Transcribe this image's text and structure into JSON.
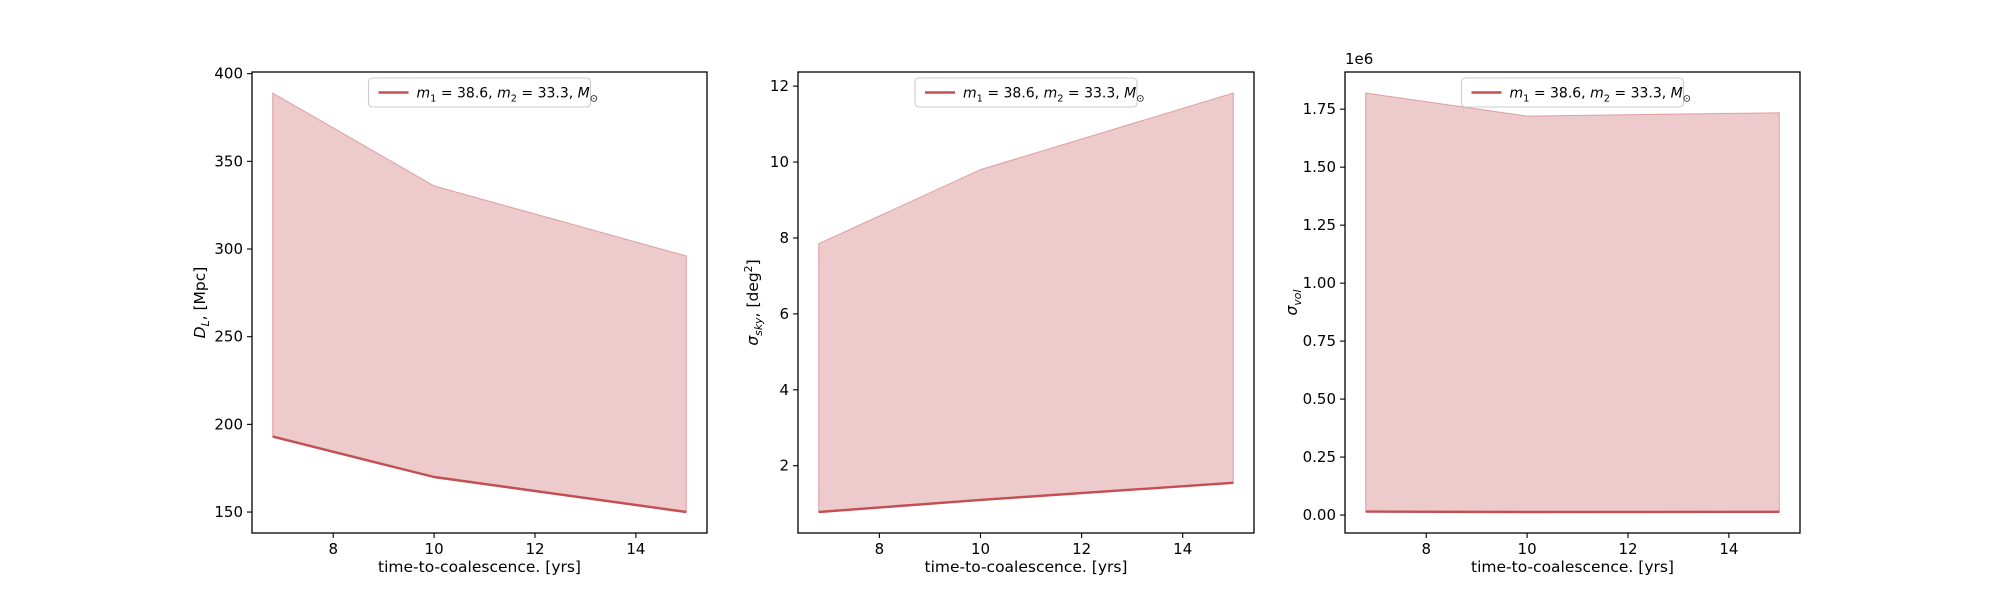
{
  "figure": {
    "background": "#ffffff"
  },
  "style": {
    "line_color": "#c44e52",
    "fill_color": "rgba(196,78,82,0.30)",
    "fill_edge_color": "rgba(196,78,82,0.45)",
    "spine_color": "#000000",
    "text_color": "#000000",
    "legend_border_color": "#cccccc",
    "legend_bg": "#ffffff"
  },
  "legend": {
    "label": "m₁ = 38.6, m₂ = 33.3, M⊙",
    "label_parts": [
      {
        "t": "m",
        "it": true
      },
      {
        "t": "1",
        "sub": true
      },
      {
        "t": " = 38.6, "
      },
      {
        "t": "m",
        "it": true
      },
      {
        "t": "2",
        "sub": true
      },
      {
        "t": " = 33.3, "
      },
      {
        "t": "M",
        "it": true
      },
      {
        "t": "⊙",
        "sub": true
      }
    ]
  },
  "chart_data": [
    {
      "type": "area",
      "panel": "luminosity-distance",
      "title": "",
      "xlabel": "time-to-coalescence. [yrs]",
      "ylabel": "D_L, [Mpc]",
      "ylabel_parts": [
        {
          "t": "D",
          "it": true
        },
        {
          "t": "L",
          "sub": true,
          "it": true
        },
        {
          "t": ", [Mpc]"
        }
      ],
      "legend_label": "m₁ = 38.6, m₂ = 33.3, M⊙",
      "x": [
        6.8,
        10,
        15
      ],
      "line": [
        193,
        170,
        150
      ],
      "band_upper": [
        389,
        336,
        296
      ],
      "xlim": [
        6.39,
        15.41
      ],
      "ylim": [
        138.05,
        400.95
      ],
      "xticks": [
        8,
        10,
        12,
        14
      ],
      "xtick_labels": [
        "8",
        "10",
        "12",
        "14"
      ],
      "yticks": [
        150,
        200,
        250,
        300,
        350,
        400
      ],
      "ytick_labels": [
        "150",
        "200",
        "250",
        "300",
        "350",
        "400"
      ],
      "offset_text": "",
      "grid": false,
      "legend_position": "upper center"
    },
    {
      "type": "area",
      "panel": "sky-localization",
      "title": "",
      "xlabel": "time-to-coalescence. [yrs]",
      "ylabel": "σ_sky, [deg²]",
      "ylabel_parts": [
        {
          "t": "σ",
          "it": true
        },
        {
          "t": "sky",
          "sub": true,
          "it": true
        },
        {
          "t": ", [deg"
        },
        {
          "t": "2",
          "sup": true
        },
        {
          "t": "]"
        }
      ],
      "legend_label": "m₁ = 38.6, m₂ = 33.3, M⊙",
      "x": [
        6.8,
        10,
        15
      ],
      "line": [
        0.78,
        1.1,
        1.55
      ],
      "band_upper": [
        7.85,
        9.8,
        11.82
      ],
      "xlim": [
        6.39,
        15.41
      ],
      "ylim": [
        0.228,
        12.372
      ],
      "xticks": [
        8,
        10,
        12,
        14
      ],
      "xtick_labels": [
        "8",
        "10",
        "12",
        "14"
      ],
      "yticks": [
        2,
        4,
        6,
        8,
        10,
        12
      ],
      "ytick_labels": [
        "2",
        "4",
        "6",
        "8",
        "10",
        "12"
      ],
      "offset_text": "",
      "grid": false,
      "legend_position": "upper center"
    },
    {
      "type": "area",
      "panel": "volume-localization",
      "title": "",
      "xlabel": "time-to-coalescence. [yrs]",
      "ylabel": "σ_vol",
      "ylabel_parts": [
        {
          "t": "σ",
          "it": true
        },
        {
          "t": "vol",
          "sub": true,
          "it": true
        }
      ],
      "legend_label": "m₁ = 38.6, m₂ = 33.3, M⊙",
      "x": [
        6.8,
        10,
        15
      ],
      "line": [
        15000,
        13000,
        14000
      ],
      "band_upper": [
        1820000,
        1720000,
        1735000
      ],
      "xlim": [
        6.39,
        15.41
      ],
      "ylim": [
        -77350,
        1910350
      ],
      "xticks": [
        8,
        10,
        12,
        14
      ],
      "xtick_labels": [
        "8",
        "10",
        "12",
        "14"
      ],
      "yticks": [
        0,
        250000,
        500000,
        750000,
        1000000,
        1250000,
        1500000,
        1750000
      ],
      "ytick_labels": [
        "0.00",
        "0.25",
        "0.50",
        "0.75",
        "1.00",
        "1.25",
        "1.50",
        "1.75"
      ],
      "offset_text": "1e6",
      "grid": false,
      "legend_position": "upper center"
    }
  ]
}
